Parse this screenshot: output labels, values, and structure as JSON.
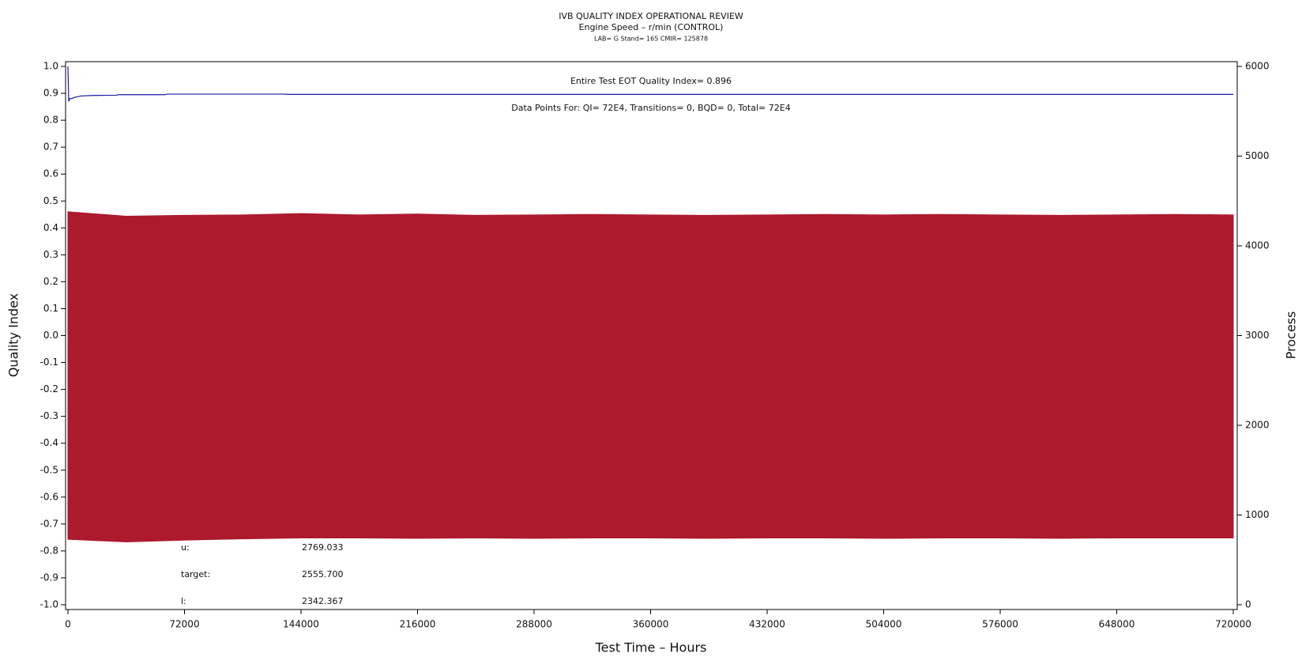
{
  "chart_data": {
    "type": "line",
    "title": "IVB QUALITY INDEX OPERATIONAL REVIEW",
    "subtitle": "Engine Speed – r/min (CONTROL)",
    "subtitle2": "LAB= G Stand= 165 CMIR= 125878",
    "xlabel": "Test Time – Hours",
    "ylabel": "Quality Index",
    "y2label": "Process",
    "annotations": [
      "Entire Test EOT Quality Index=  0.896",
      "Data Points For: QI=  72E4, Transitions=     0, BQD=     0, Total=  72E4"
    ],
    "stats": [
      {
        "label": "u:",
        "value": "2769.033"
      },
      {
        "label": "target:",
        "value": "2555.700"
      },
      {
        "label": "l:",
        "value": "2342.367"
      }
    ],
    "xlim": [
      0,
      720000
    ],
    "xticks": [
      0,
      72000,
      144000,
      216000,
      288000,
      360000,
      432000,
      504000,
      576000,
      648000,
      720000
    ],
    "ylim": [
      -1,
      1
    ],
    "yticks": [
      {
        "value": 1,
        "label": "1.0"
      },
      0.9,
      0.8,
      0.7,
      0.6,
      0.5,
      0.4,
      0.3,
      0.2,
      0.1,
      {
        "value": 0,
        "label": "0.0"
      },
      -0.1,
      -0.2,
      -0.3,
      -0.4,
      -0.5,
      -0.6,
      -0.7,
      -0.8,
      -0.9,
      {
        "value": -1,
        "label": "-1.0"
      }
    ],
    "y2lim": [
      0,
      6000
    ],
    "y2ticks": [
      0,
      1000,
      2000,
      3000,
      4000,
      5000,
      6000
    ],
    "series": [
      {
        "color": "#1a1aa8",
        "x": [
          0,
          500,
          1000,
          2000,
          4000,
          8000,
          15000,
          30000,
          31000,
          60000,
          61000,
          134000,
          135000,
          720000
        ],
        "values": [
          1.0,
          0.87,
          0.88,
          0.88,
          0.885,
          0.89,
          0.892,
          0.893,
          0.895,
          0.895,
          0.897,
          0.897,
          0.896,
          0.896
        ]
      },
      {
        "color": "#ae1a2d",
        "axis": "y2",
        "x": [
          0,
          36000,
          72000,
          108000,
          144000,
          180000,
          216000,
          252000,
          288000,
          324000,
          360000,
          396000,
          432000,
          468000,
          504000,
          540000,
          576000,
          612000,
          648000,
          684000,
          720000
        ],
        "high": [
          4380,
          4330,
          4340,
          4345,
          4360,
          4345,
          4355,
          4340,
          4345,
          4350,
          4345,
          4340,
          4345,
          4350,
          4345,
          4350,
          4345,
          4340,
          4345,
          4350,
          4345
        ],
        "low": [
          730,
          700,
          720,
          735,
          745,
          745,
          740,
          745,
          740,
          745,
          745,
          740,
          745,
          745,
          740,
          745,
          745,
          740,
          745,
          745,
          745
        ]
      }
    ]
  }
}
